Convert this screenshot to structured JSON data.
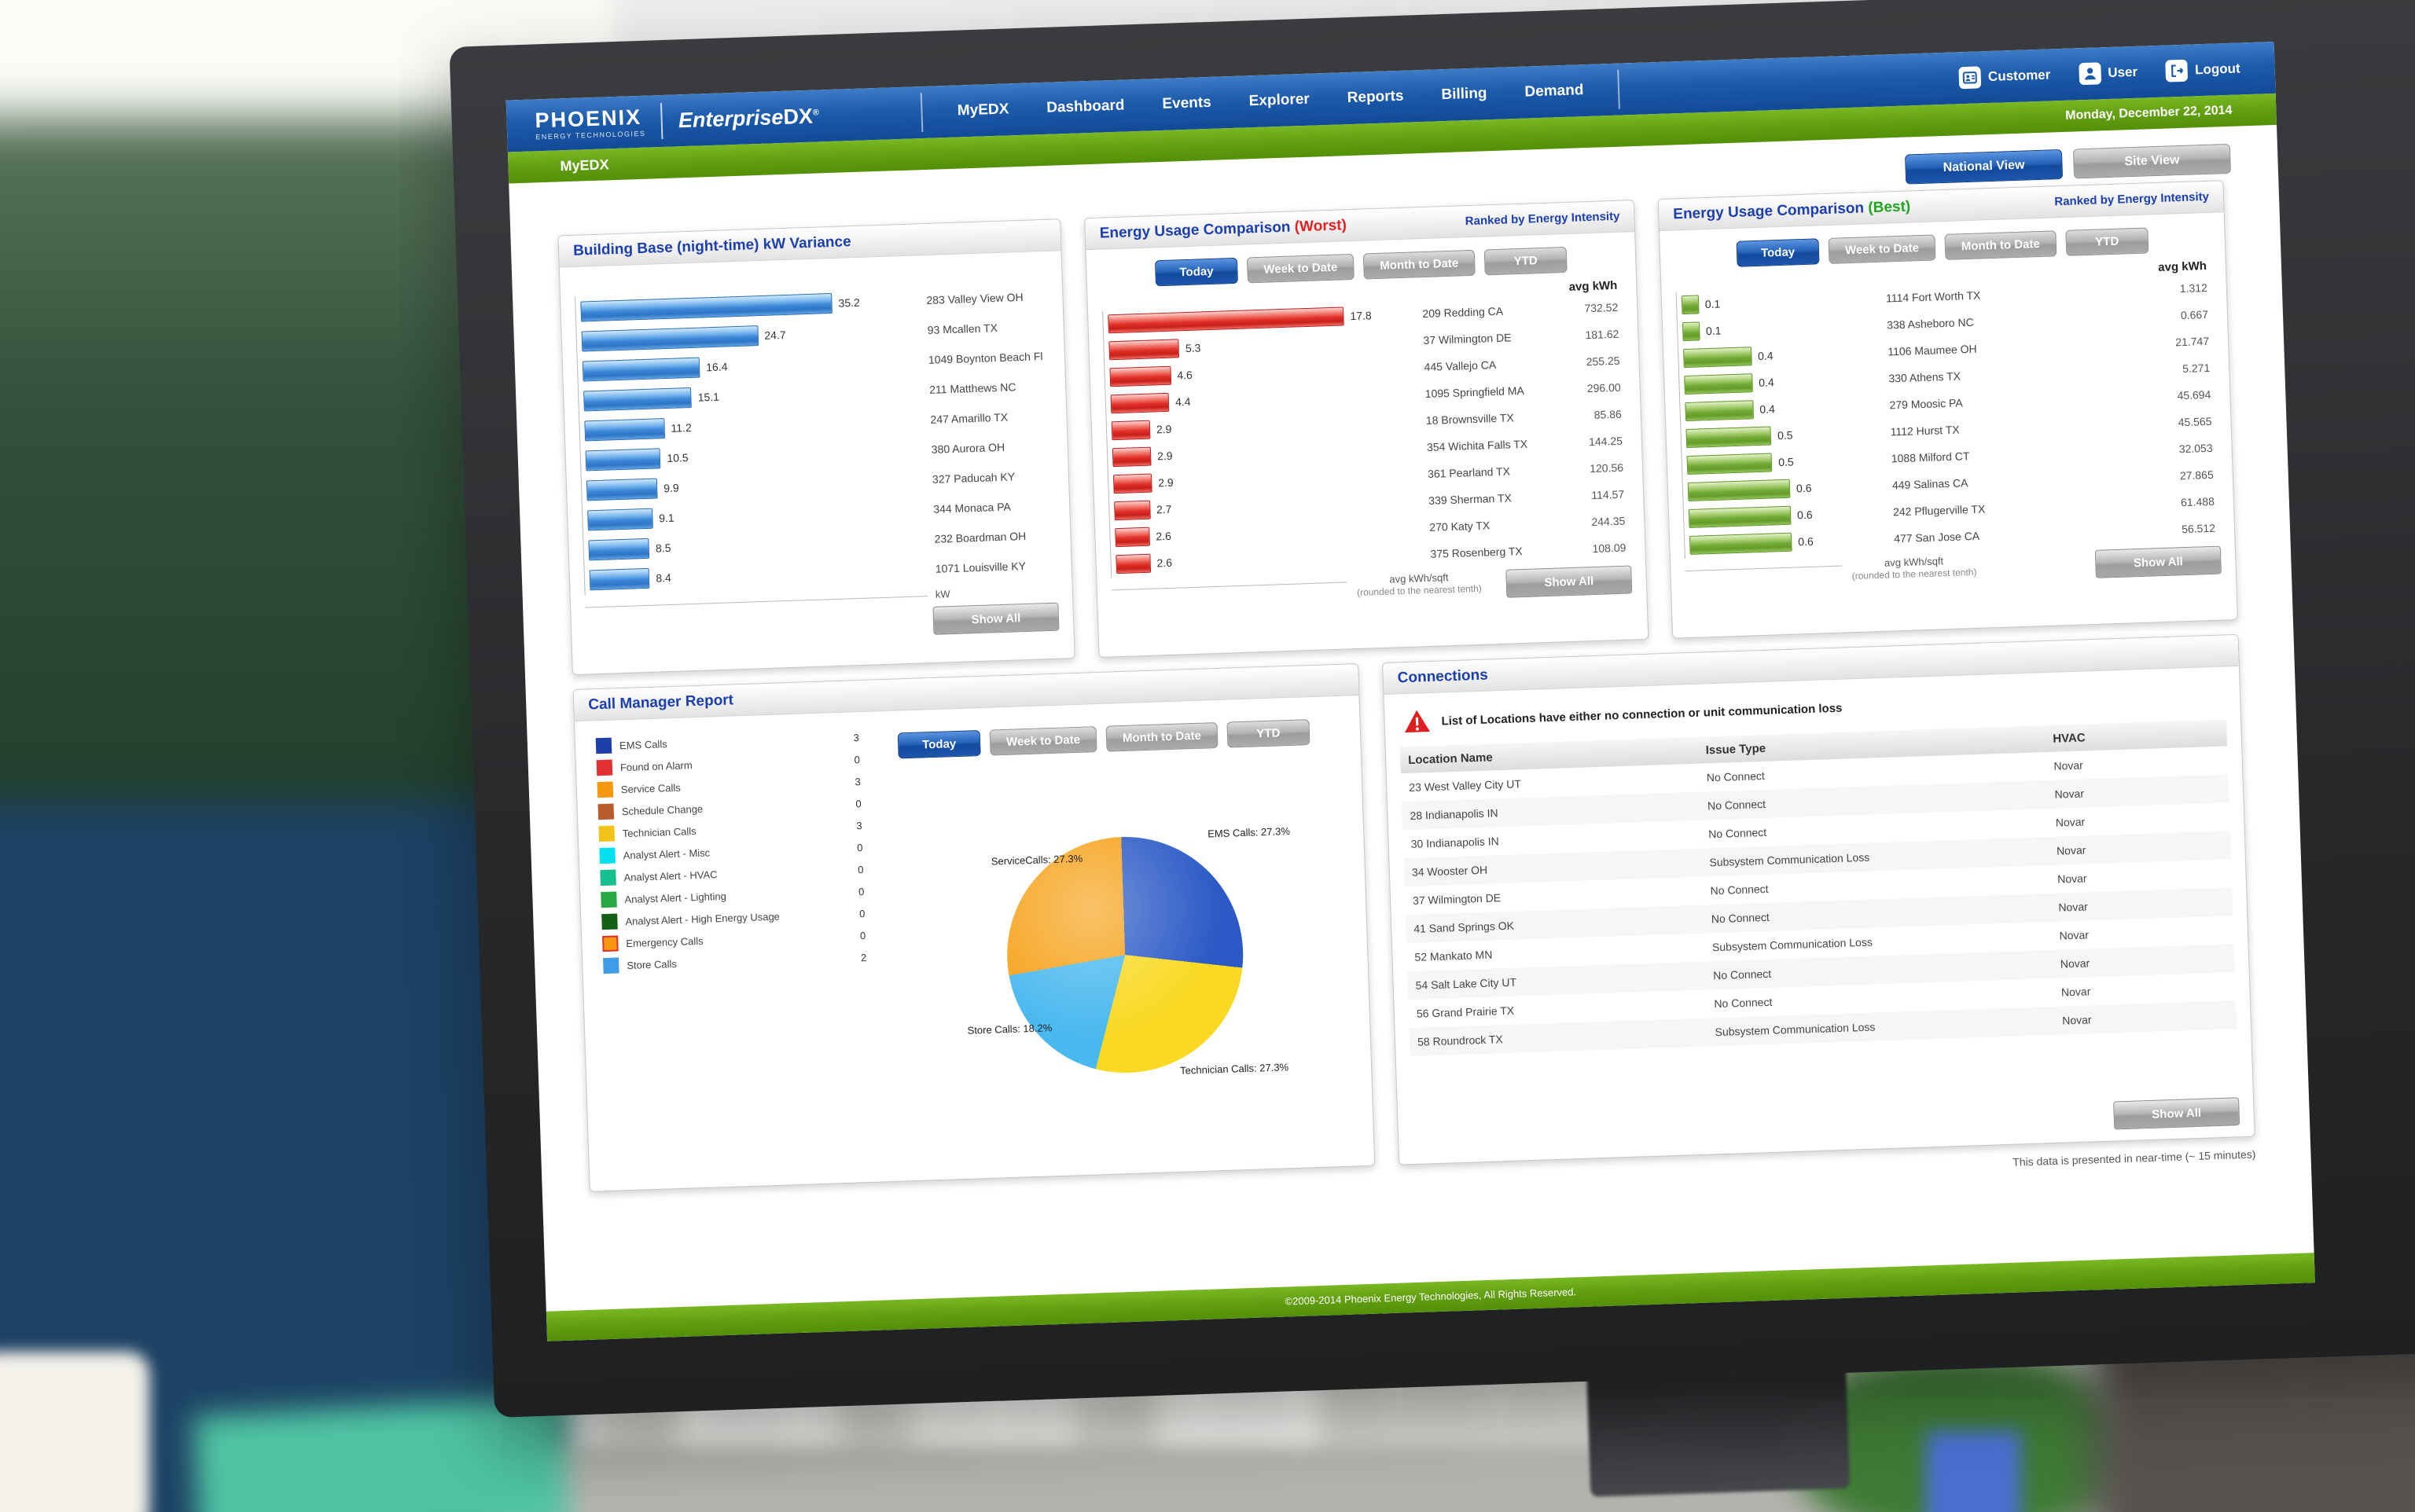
{
  "window": {
    "date": "Monday, December 22, 2014"
  },
  "brand": {
    "logo_main": "PHOENIX",
    "logo_sub": "ENERGY TECHNOLOGIES",
    "product_a": "Enterprise",
    "product_b": "DX",
    "trademark": "®"
  },
  "topbar_links": [
    {
      "id": "customer",
      "label": "Customer"
    },
    {
      "id": "user",
      "label": "User"
    },
    {
      "id": "logout",
      "label": "Logout"
    }
  ],
  "nav_items": [
    "MyEDX",
    "Dashboard",
    "Events",
    "Explorer",
    "Reports",
    "Billing",
    "Demand"
  ],
  "subbar": {
    "section_title": "MyEDX"
  },
  "view_buttons": {
    "national": "National View",
    "site": "Site View"
  },
  "time_filters": [
    "Today",
    "Week to Date",
    "Month to Date",
    "YTD"
  ],
  "labels": {
    "show_all": "Show All",
    "avg_kwh": "avg kWh"
  },
  "panels": {
    "building_base": {
      "title": "Building Base (night-time) kW Variance",
      "axis_label": "kW"
    },
    "worst": {
      "title": "Energy Usage Comparison",
      "suffix": "(Worst)",
      "ranked": "Ranked by Energy Intensity",
      "axis_label": "avg kWh/sqft",
      "axis_note": "(rounded to the nearest tenth)"
    },
    "best": {
      "title": "Energy Usage Comparison",
      "suffix": "(Best)",
      "ranked": "Ranked by Energy Intensity",
      "axis_label": "avg kWh/sqft",
      "axis_note": "(rounded to the nearest tenth)"
    },
    "call_manager": {
      "title": "Call Manager Report",
      "legend": [
        {
          "label": "EMS Calls",
          "count": 3,
          "color": "#1e3ea8"
        },
        {
          "label": "Found on Alarm",
          "count": 0,
          "color": "#e03030"
        },
        {
          "label": "Service Calls",
          "count": 3,
          "color": "#f5980f"
        },
        {
          "label": "Schedule Change",
          "count": 0,
          "color": "#b85c2e"
        },
        {
          "label": "Technician Calls",
          "count": 3,
          "color": "#f2c318"
        },
        {
          "label": "Analyst Alert - Misc",
          "count": 0,
          "color": "#00e0ee"
        },
        {
          "label": "Analyst Alert - HVAC",
          "count": 0,
          "color": "#17c08f"
        },
        {
          "label": "Analyst Alert - Lighting",
          "count": 0,
          "color": "#27a844"
        },
        {
          "label": "Analyst Alert - High Energy Usage",
          "count": 0,
          "color": "#156018"
        },
        {
          "label": "Emergency Calls",
          "count": 0,
          "color": "#f5980f",
          "border": "#e03030"
        },
        {
          "label": "Store Calls",
          "count": 2,
          "color": "#3f9de8"
        }
      ]
    },
    "connections": {
      "title": "Connections",
      "warning": "List of Locations have either no connection or unit communication loss",
      "headers": [
        "Location Name",
        "Issue Type",
        "HVAC"
      ],
      "rows": [
        [
          "23 West Valley City UT",
          "No Connect",
          "Novar"
        ],
        [
          "28 Indianapolis IN",
          "No Connect",
          "Novar"
        ],
        [
          "30 Indianapolis IN",
          "No Connect",
          "Novar"
        ],
        [
          "34 Wooster OH",
          "Subsystem Communication Loss",
          "Novar"
        ],
        [
          "37 Wilmington DE",
          "No Connect",
          "Novar"
        ],
        [
          "41 Sand Springs OK",
          "No Connect",
          "Novar"
        ],
        [
          "52 Mankato MN",
          "Subsystem Communication Loss",
          "Novar"
        ],
        [
          "54 Salt Lake City UT",
          "No Connect",
          "Novar"
        ],
        [
          "56 Grand Prairie TX",
          "No Connect",
          "Novar"
        ],
        [
          "58 Roundrock TX",
          "Subsystem Communication Loss",
          "Novar"
        ]
      ]
    }
  },
  "chart_data": [
    {
      "id": "building_base",
      "type": "bar",
      "orientation": "horizontal",
      "title": "Building Base (night-time) kW Variance",
      "xlabel": "kW",
      "bar_color": "#3c87d8",
      "categories": [
        "283 Valley View OH",
        "93 Mcallen TX",
        "1049 Boynton Beach Fl",
        "211 Matthews NC",
        "247 Amarillo TX",
        "380 Aurora OH",
        "327 Paducah KY",
        "344 Monaca PA",
        "232 Boardman OH",
        "1071 Louisville KY"
      ],
      "values": [
        35.2,
        24.7,
        16.4,
        15.1,
        11.2,
        10.5,
        9.9,
        9.1,
        8.5,
        8.4
      ]
    },
    {
      "id": "energy_worst",
      "type": "bar",
      "orientation": "horizontal",
      "title": "Energy Usage Comparison (Worst)",
      "xlabel": "avg kWh/sqft (rounded to the nearest tenth)",
      "bar_color": "#e03028",
      "categories": [
        "209 Redding CA",
        "37 Wilmington DE",
        "445 Vallejo CA",
        "1095 Springfield MA",
        "18 Brownsville TX",
        "354 Wichita Falls TX",
        "361 Pearland TX",
        "339 Sherman TX",
        "270 Katy TX",
        "375 Rosenberg TX"
      ],
      "values": [
        17.8,
        5.3,
        4.6,
        4.4,
        2.9,
        2.9,
        2.9,
        2.7,
        2.6,
        2.6
      ],
      "avg_kwh": [
        "732.52",
        "181.62",
        "255.25",
        "296.00",
        "85.86",
        "144.25",
        "120.56",
        "114.57",
        "244.35",
        "108.09"
      ]
    },
    {
      "id": "energy_best",
      "type": "bar",
      "orientation": "horizontal",
      "title": "Energy Usage Comparison (Best)",
      "xlabel": "avg kWh/sqft (rounded to the nearest tenth)",
      "bar_color": "#74ab38",
      "categories": [
        "1114 Fort Worth TX",
        "338 Asheboro NC",
        "1106 Maumee OH",
        "330 Athens TX",
        "279 Moosic PA",
        "1112 Hurst TX",
        "1088 Milford CT",
        "449 Salinas CA",
        "242 Pflugerville TX",
        "477 San Jose CA"
      ],
      "values": [
        0.1,
        0.1,
        0.4,
        0.4,
        0.4,
        0.5,
        0.5,
        0.6,
        0.6,
        0.6
      ],
      "avg_kwh": [
        "1.312",
        "0.667",
        "21.747",
        "5.271",
        "45.694",
        "45.565",
        "32.053",
        "27.865",
        "61.488",
        "56.512"
      ]
    },
    {
      "id": "call_manager_pie",
      "type": "pie",
      "title": "Call Manager Report",
      "slices": [
        {
          "label": "EMS Calls",
          "pct": 27.3,
          "color": "#2b5ac6",
          "label_pos": "tr"
        },
        {
          "label": "Technician Calls",
          "pct": 27.3,
          "color": "#f9d923",
          "label_pos": "br"
        },
        {
          "label": "Store Calls",
          "pct": 18.2,
          "color": "#49b8ef",
          "label_pos": "bl"
        },
        {
          "label": "ServiceCalls",
          "pct": 27.3,
          "color": "#f6a21a",
          "label_pos": "tl"
        }
      ]
    }
  ],
  "footer": {
    "note": "This data is presented in near-time (~ 15 minutes)",
    "copyright": "©2009-2014 Phoenix Energy Technologies, All Rights Reserved."
  }
}
